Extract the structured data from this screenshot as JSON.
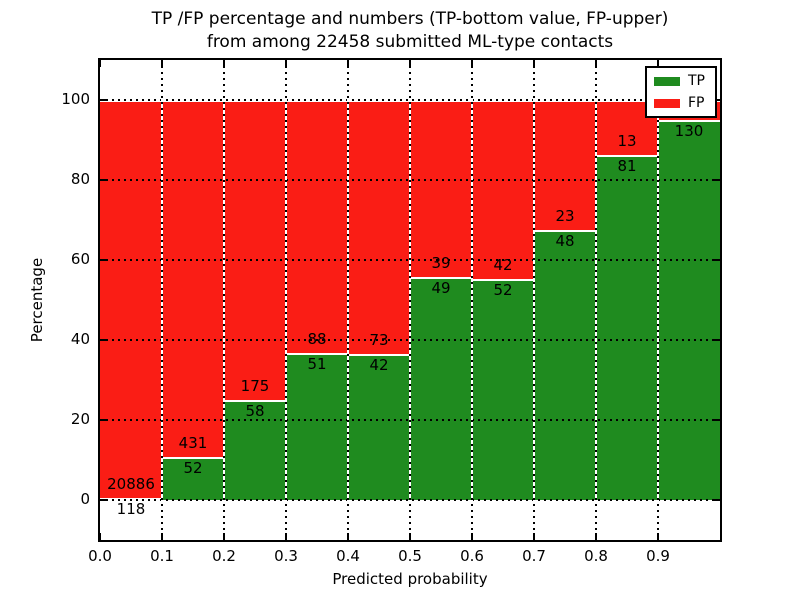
{
  "figure": {
    "title_line1": "TP /FP percentage and numbers (TP-bottom value, FP-upper)",
    "title_line2": "from among 22458 submitted ML-type contacts"
  },
  "axes": {
    "xlabel": "Predicted probability",
    "ylabel": "Percentage",
    "x_tick_labels": [
      "0.0",
      "0.1",
      "0.2",
      "0.3",
      "0.4",
      "0.5",
      "0.6",
      "0.7",
      "0.8",
      "0.9"
    ],
    "y_tick_labels": [
      "0",
      "20",
      "40",
      "60",
      "80",
      "100"
    ],
    "xlim": [
      0.0,
      1.0
    ],
    "ylim": [
      -10,
      110
    ]
  },
  "legend": {
    "items": [
      {
        "label": "TP",
        "color": "#1f8b1f"
      },
      {
        "label": "FP",
        "color": "#fa1d15"
      }
    ]
  },
  "colors": {
    "tp": "#1f8b1f",
    "fp": "#fa1d15",
    "background": "#ffffff",
    "text": "#000000"
  },
  "chart_data": {
    "type": "bar",
    "stacked": true,
    "normalized_to_percent": true,
    "title": "TP /FP percentage and numbers (TP-bottom value, FP-upper) from among 22458 submitted ML-type contacts",
    "xlabel": "Predicted probability",
    "ylabel": "Percentage",
    "total_contacts": 22458,
    "bin_width": 0.1,
    "grid": true,
    "legend_position": "upper right",
    "y_grid_values": [
      0,
      20,
      40,
      60,
      80,
      100
    ],
    "series_names": [
      "TP",
      "FP"
    ],
    "bars": [
      {
        "bin_start": 0.0,
        "bin_end": 0.1,
        "tp_count": 118,
        "fp_count": 20886,
        "tp_pct": 0.56
      },
      {
        "bin_start": 0.1,
        "bin_end": 0.2,
        "tp_count": 52,
        "fp_count": 431,
        "tp_pct": 10.77
      },
      {
        "bin_start": 0.2,
        "bin_end": 0.3,
        "tp_count": 58,
        "fp_count": 175,
        "tp_pct": 24.89
      },
      {
        "bin_start": 0.3,
        "bin_end": 0.4,
        "tp_count": 51,
        "fp_count": 88,
        "tp_pct": 36.69
      },
      {
        "bin_start": 0.4,
        "bin_end": 0.5,
        "tp_count": 42,
        "fp_count": 73,
        "tp_pct": 36.52
      },
      {
        "bin_start": 0.5,
        "bin_end": 0.6,
        "tp_count": 49,
        "fp_count": 39,
        "tp_pct": 55.68
      },
      {
        "bin_start": 0.6,
        "bin_end": 0.7,
        "tp_count": 52,
        "fp_count": 42,
        "tp_pct": 55.32
      },
      {
        "bin_start": 0.7,
        "bin_end": 0.8,
        "tp_count": 48,
        "fp_count": 23,
        "tp_pct": 67.61
      },
      {
        "bin_start": 0.8,
        "bin_end": 0.9,
        "tp_count": 81,
        "fp_count": 13,
        "tp_pct": 86.17
      },
      {
        "bin_start": 0.9,
        "bin_end": 1.0,
        "tp_count": 130,
        "fp_count": null,
        "tp_pct": 94.89
      }
    ]
  }
}
